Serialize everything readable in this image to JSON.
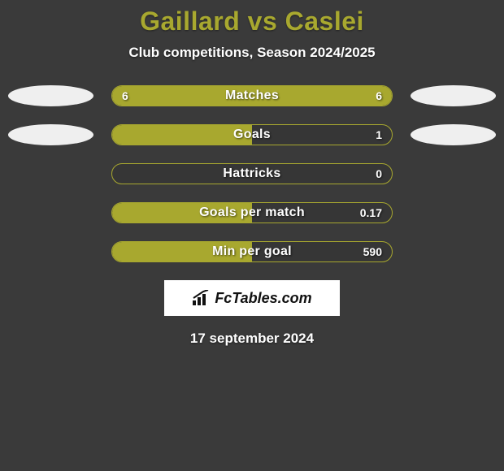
{
  "title": "Gaillard vs Caslei",
  "subtitle": "Club competitions, Season 2024/2025",
  "date": "17 september 2024",
  "colors": {
    "background": "#3a3a3a",
    "accent": "#a8a82f",
    "track": "#363636",
    "ellipse": "#efefef",
    "text": "#ffffff",
    "title": "#a8a82f"
  },
  "logo": {
    "text": "FcTables.com"
  },
  "rows": [
    {
      "label": "Matches",
      "left_value": "6",
      "right_value": "6",
      "left_fill_pct": 50,
      "right_fill_pct": 50,
      "show_left_ellipse": true,
      "show_right_ellipse": true
    },
    {
      "label": "Goals",
      "left_value": "",
      "right_value": "1",
      "left_fill_pct": 50,
      "right_fill_pct": 0,
      "show_left_ellipse": true,
      "show_right_ellipse": true
    },
    {
      "label": "Hattricks",
      "left_value": "",
      "right_value": "0",
      "left_fill_pct": 0,
      "right_fill_pct": 0,
      "show_left_ellipse": false,
      "show_right_ellipse": false
    },
    {
      "label": "Goals per match",
      "left_value": "",
      "right_value": "0.17",
      "left_fill_pct": 50,
      "right_fill_pct": 0,
      "show_left_ellipse": false,
      "show_right_ellipse": false
    },
    {
      "label": "Min per goal",
      "left_value": "",
      "right_value": "590",
      "left_fill_pct": 50,
      "right_fill_pct": 0,
      "show_left_ellipse": false,
      "show_right_ellipse": false
    }
  ]
}
